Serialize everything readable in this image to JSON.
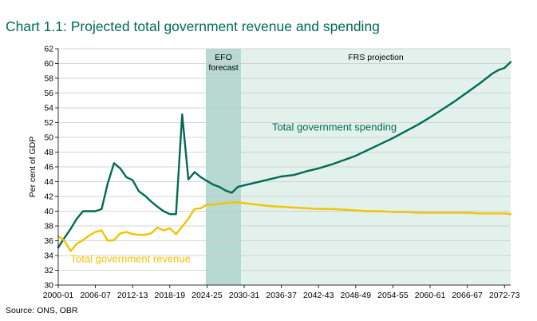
{
  "title": "Chart 1.1: Projected total government revenue and spending",
  "source": "Source: ONS, OBR",
  "chart_data": {
    "type": "line",
    "ylabel": "Per cent of GDP",
    "ylim": [
      30,
      62
    ],
    "yticks": [
      30,
      32,
      34,
      36,
      38,
      40,
      42,
      44,
      46,
      48,
      50,
      52,
      54,
      56,
      58,
      60,
      62
    ],
    "xlim": [
      2000,
      2073
    ],
    "xtick_labels": [
      "2000-01",
      "2006-07",
      "2012-13",
      "2018-19",
      "2024-25",
      "2030-31",
      "2036-37",
      "2042-43",
      "2048-49",
      "2054-55",
      "2060-61",
      "2066-67",
      "2072-73"
    ],
    "xticks": [
      2000,
      2006,
      2012,
      2018,
      2024,
      2030,
      2036,
      2042,
      2048,
      2054,
      2060,
      2066,
      2072
    ],
    "grid": "horizontal",
    "bands": [
      {
        "label_lines": [
          "EFO",
          "forecast"
        ],
        "from": 2023.8,
        "to": 2029.5,
        "color": "#b7d9d1"
      },
      {
        "label_lines": [
          "FRS projection"
        ],
        "from": 2029.5,
        "to": 2073,
        "color": "#e3f1ed"
      }
    ],
    "series": [
      {
        "name": "Total government spending",
        "color": "#006b54",
        "x": [
          2000,
          2001,
          2002,
          2003,
          2004,
          2005,
          2006,
          2007,
          2008,
          2009,
          2010,
          2011,
          2012,
          2013,
          2014,
          2015,
          2016,
          2017,
          2018,
          2019,
          2020,
          2021,
          2022,
          2023,
          2024,
          2025,
          2026,
          2027,
          2028,
          2029,
          2030,
          2032,
          2034,
          2036,
          2038,
          2040,
          2042,
          2044,
          2046,
          2048,
          2050,
          2052,
          2054,
          2056,
          2058,
          2060,
          2062,
          2064,
          2066,
          2068,
          2070,
          2071,
          2072,
          2073
        ],
        "values": [
          35.1,
          36.4,
          37.6,
          39.0,
          40.0,
          40.0,
          40.0,
          40.3,
          43.8,
          46.5,
          45.8,
          44.6,
          44.2,
          42.7,
          42.1,
          41.3,
          40.6,
          40.0,
          39.6,
          39.6,
          53.1,
          44.3,
          45.3,
          44.6,
          44.1,
          43.6,
          43.3,
          42.8,
          42.5,
          43.3,
          43.5,
          43.9,
          44.3,
          44.7,
          44.9,
          45.4,
          45.8,
          46.3,
          46.9,
          47.5,
          48.3,
          49.1,
          49.9,
          50.8,
          51.7,
          52.7,
          53.8,
          54.9,
          56.1,
          57.3,
          58.6,
          59.1,
          59.4,
          60.2
        ]
      },
      {
        "name": "Total government revenue",
        "color": "#f2c300",
        "x": [
          2000,
          2001,
          2002,
          2003,
          2004,
          2005,
          2006,
          2007,
          2008,
          2009,
          2010,
          2011,
          2012,
          2013,
          2014,
          2015,
          2016,
          2017,
          2018,
          2019,
          2020,
          2021,
          2022,
          2023,
          2024,
          2025,
          2026,
          2027,
          2028,
          2029,
          2030,
          2032,
          2034,
          2036,
          2038,
          2040,
          2042,
          2044,
          2046,
          2048,
          2050,
          2052,
          2054,
          2056,
          2058,
          2060,
          2062,
          2064,
          2066,
          2068,
          2070,
          2072,
          2073
        ],
        "values": [
          36.6,
          36.0,
          34.6,
          35.6,
          36.1,
          36.7,
          37.2,
          37.4,
          36.0,
          36.1,
          37.0,
          37.2,
          36.9,
          36.8,
          36.8,
          37.0,
          37.8,
          37.4,
          37.7,
          36.9,
          37.9,
          39.0,
          40.3,
          40.4,
          40.9,
          40.9,
          41.0,
          41.1,
          41.2,
          41.2,
          41.1,
          40.9,
          40.7,
          40.6,
          40.5,
          40.4,
          40.3,
          40.3,
          40.2,
          40.1,
          40.0,
          40.0,
          39.9,
          39.9,
          39.8,
          39.8,
          39.8,
          39.8,
          39.8,
          39.7,
          39.7,
          39.7,
          39.6
        ]
      }
    ]
  }
}
